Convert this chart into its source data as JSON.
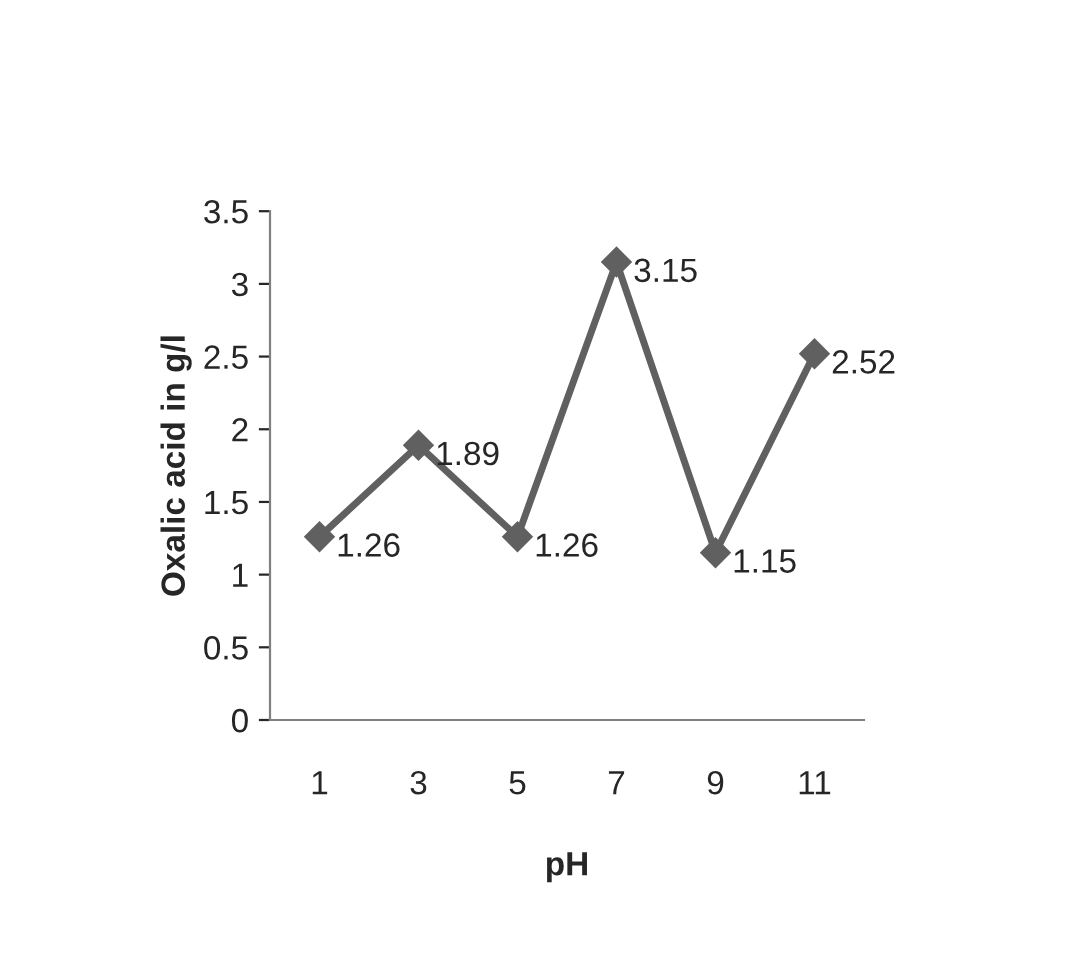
{
  "chart_data": {
    "type": "line",
    "xlabel": "pH",
    "ylabel": "Oxalic acid in g/l",
    "categories": [
      "1",
      "3",
      "5",
      "7",
      "9",
      "11"
    ],
    "series": [
      {
        "color": "#606060",
        "values": [
          1.26,
          1.89,
          1.26,
          3.15,
          1.15,
          2.52
        ]
      }
    ],
    "ylim": [
      0,
      3.5
    ],
    "yticks": [
      0,
      0.5,
      1,
      1.5,
      2,
      2.5,
      3,
      3.5
    ],
    "data_labels": true,
    "marker": "diamond",
    "grid": false,
    "legend": false
  }
}
